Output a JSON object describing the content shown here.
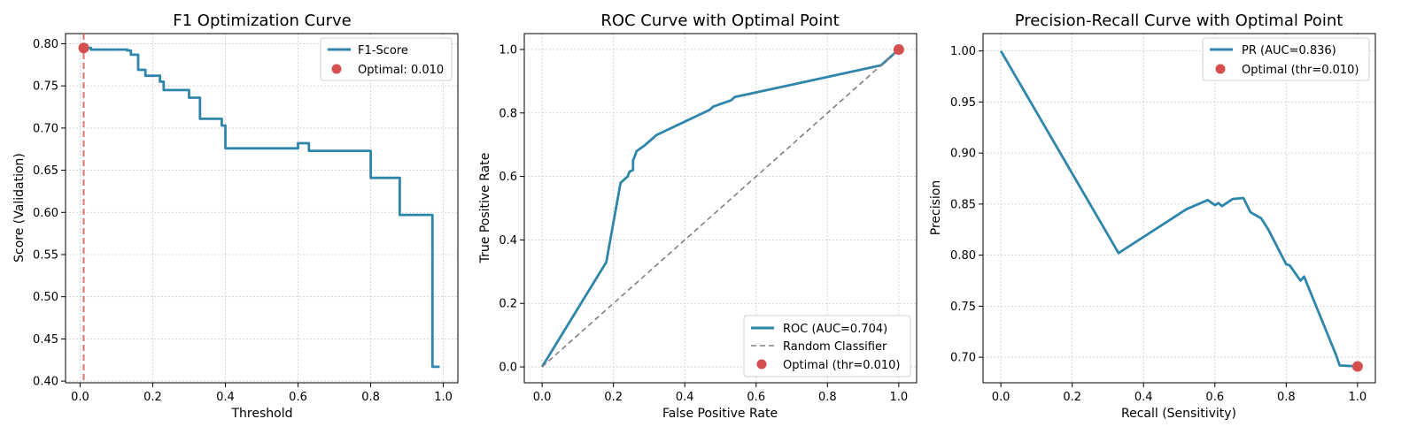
{
  "colors": {
    "line": "#2e86ab",
    "optimal": "#d64f4f",
    "random": "#808080",
    "grid": "#cccccc"
  },
  "chart_data": [
    {
      "type": "line",
      "title": "F1 Optimization Curve",
      "xlabel": "Threshold",
      "ylabel": "Score (Validation)",
      "xlim": [
        -0.04,
        1.04
      ],
      "ylim": [
        0.398,
        0.812
      ],
      "xticks": [
        0.0,
        0.2,
        0.4,
        0.6,
        0.8,
        1.0
      ],
      "xtick_labels": [
        "0.0",
        "0.2",
        "0.4",
        "0.6",
        "0.8",
        "1.0"
      ],
      "yticks": [
        0.4,
        0.45,
        0.5,
        0.55,
        0.6,
        0.65,
        0.7,
        0.75,
        0.8
      ],
      "ytick_labels": [
        "0.40",
        "0.45",
        "0.50",
        "0.55",
        "0.60",
        "0.65",
        "0.70",
        "0.75",
        "0.80"
      ],
      "grid": true,
      "legend_position": "top-right",
      "series": [
        {
          "name": "F1-Score",
          "x": [
            0.01,
            0.02,
            0.03,
            0.03,
            0.06,
            0.06,
            0.13,
            0.13,
            0.14,
            0.14,
            0.16,
            0.16,
            0.18,
            0.18,
            0.22,
            0.22,
            0.23,
            0.23,
            0.3,
            0.3,
            0.33,
            0.33,
            0.39,
            0.39,
            0.4,
            0.4,
            0.41,
            0.41,
            0.6,
            0.6,
            0.63,
            0.63,
            0.8,
            0.8,
            0.88,
            0.88,
            0.97,
            0.97,
            0.99
          ],
          "y": [
            0.795,
            0.795,
            0.795,
            0.793,
            0.793,
            0.793,
            0.793,
            0.792,
            0.792,
            0.787,
            0.787,
            0.769,
            0.769,
            0.762,
            0.762,
            0.755,
            0.755,
            0.745,
            0.745,
            0.736,
            0.736,
            0.711,
            0.711,
            0.703,
            0.703,
            0.676,
            0.676,
            0.676,
            0.676,
            0.682,
            0.682,
            0.673,
            0.673,
            0.641,
            0.641,
            0.597,
            0.597,
            0.417,
            0.417
          ]
        }
      ],
      "optimal": {
        "label": "Optimal: 0.010",
        "x": 0.01,
        "y": 0.795
      },
      "vline": {
        "x": 0.01
      }
    },
    {
      "type": "line",
      "title": "ROC Curve with Optimal Point",
      "xlabel": "False Positive Rate",
      "ylabel": "True Positive Rate",
      "xlim": [
        -0.05,
        1.05
      ],
      "ylim": [
        -0.05,
        1.05
      ],
      "xticks": [
        0.0,
        0.2,
        0.4,
        0.6,
        0.8,
        1.0
      ],
      "xtick_labels": [
        "0.0",
        "0.2",
        "0.4",
        "0.6",
        "0.8",
        "1.0"
      ],
      "yticks": [
        0.0,
        0.2,
        0.4,
        0.6,
        0.8,
        1.0
      ],
      "ytick_labels": [
        "0.0",
        "0.2",
        "0.4",
        "0.6",
        "0.8",
        "1.0"
      ],
      "grid": true,
      "legend_position": "bottom-right",
      "series": [
        {
          "name": "ROC (AUC=0.704)",
          "x": [
            0.0,
            0.18,
            0.22,
            0.24,
            0.245,
            0.255,
            0.255,
            0.265,
            0.29,
            0.32,
            0.47,
            0.48,
            0.53,
            0.54,
            0.95,
            0.96,
            1.0
          ],
          "y": [
            0.0,
            0.33,
            0.58,
            0.6,
            0.615,
            0.62,
            0.65,
            0.68,
            0.7,
            0.73,
            0.81,
            0.82,
            0.84,
            0.85,
            0.95,
            0.96,
            1.0
          ]
        },
        {
          "name": "Random Classifier",
          "x": [
            0.0,
            1.0
          ],
          "y": [
            0.0,
            1.0
          ]
        }
      ],
      "optimal": {
        "label": "Optimal (thr=0.010)",
        "x": 1.0,
        "y": 1.0
      }
    },
    {
      "type": "line",
      "title": "Precision-Recall Curve with Optimal Point",
      "xlabel": "Recall (Sensitivity)",
      "ylabel": "Precision",
      "xlim": [
        -0.05,
        1.05
      ],
      "ylim": [
        0.675,
        1.017
      ],
      "xticks": [
        0.0,
        0.2,
        0.4,
        0.6,
        0.8,
        1.0
      ],
      "xtick_labels": [
        "0.0",
        "0.2",
        "0.4",
        "0.6",
        "0.8",
        "1.0"
      ],
      "yticks": [
        0.7,
        0.75,
        0.8,
        0.85,
        0.9,
        0.95,
        1.0
      ],
      "ytick_labels": [
        "0.70",
        "0.75",
        "0.80",
        "0.85",
        "0.90",
        "0.95",
        "1.00"
      ],
      "grid": true,
      "legend_position": "top-right",
      "series": [
        {
          "name": "PR (AUC=0.836)",
          "x": [
            0.0,
            0.33,
            0.52,
            0.58,
            0.6,
            0.61,
            0.62,
            0.65,
            0.68,
            0.7,
            0.73,
            0.75,
            0.8,
            0.81,
            0.83,
            0.84,
            0.85,
            0.94,
            0.95,
            1.0
          ],
          "y": [
            1.0,
            0.802,
            0.845,
            0.854,
            0.849,
            0.851,
            0.848,
            0.855,
            0.856,
            0.842,
            0.836,
            0.825,
            0.791,
            0.79,
            0.78,
            0.775,
            0.779,
            0.702,
            0.692,
            0.691
          ]
        }
      ],
      "optimal": {
        "label": "Optimal (thr=0.010)",
        "x": 1.0,
        "y": 0.691
      }
    }
  ]
}
